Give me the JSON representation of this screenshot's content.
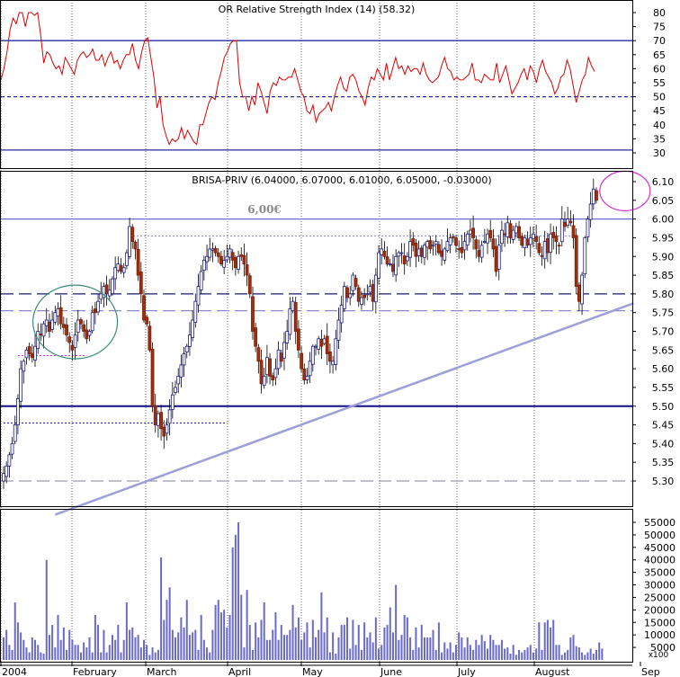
{
  "chart_data": [
    {
      "type": "line",
      "panel": "indicator",
      "title": "OR Relative Strength Index (14) (58.32)",
      "ylim": [
        30,
        85
      ],
      "yticks": [
        30,
        35,
        40,
        45,
        50,
        55,
        60,
        65,
        70,
        75,
        80
      ],
      "reference_lines": [
        {
          "value": 70,
          "style": "solid"
        },
        {
          "value": 50,
          "style": "dashed"
        },
        {
          "value": 31,
          "style": "solid"
        }
      ],
      "series": [
        {
          "color": "#dd0000",
          "values": [
            56,
            60,
            66,
            74,
            78,
            76,
            80,
            80,
            75,
            80,
            80,
            79,
            80,
            72,
            62,
            66,
            65,
            62,
            60,
            61,
            58,
            64,
            62,
            60,
            58,
            63,
            65,
            66,
            64,
            65,
            67,
            63,
            63,
            65,
            61,
            64,
            66,
            62,
            63,
            60,
            63,
            65,
            65,
            69,
            63,
            60,
            66,
            70,
            71,
            64,
            57,
            46,
            50,
            40,
            36,
            33,
            35,
            34,
            35,
            39,
            35,
            38,
            36,
            34,
            33,
            40,
            40,
            44,
            48,
            50,
            49,
            55,
            59,
            64,
            66,
            69,
            70,
            70,
            55,
            50,
            50,
            45,
            50,
            47,
            55,
            52,
            48,
            44,
            52,
            55,
            54,
            57,
            56,
            56,
            57,
            57,
            60,
            56,
            52,
            50,
            45,
            44,
            47,
            41,
            44,
            45,
            46,
            48,
            45,
            50,
            54,
            57,
            53,
            52,
            57,
            58,
            56,
            52,
            50,
            47,
            53,
            57,
            56,
            60,
            58,
            56,
            62,
            56,
            60,
            64,
            60,
            61,
            58,
            61,
            59,
            60,
            60,
            58,
            62,
            58,
            56,
            55,
            56,
            57,
            61,
            64,
            60,
            59,
            56,
            57,
            56,
            56,
            57,
            58,
            62,
            56,
            56,
            55,
            58,
            57,
            56,
            56,
            62,
            55,
            58,
            61,
            56,
            51,
            53,
            55,
            58,
            60,
            56,
            61,
            59,
            55,
            60,
            63,
            59,
            57,
            55,
            51,
            53,
            57,
            58,
            63,
            60,
            54,
            48,
            52,
            56,
            58,
            64,
            61,
            59
          ]
        }
      ]
    },
    {
      "type": "candlestick",
      "panel": "price",
      "title": "BRISA-PRIV (6.04000, 6.07000, 6.01000, 6.05000, -0.03000)",
      "annotation": "6,00€",
      "ylim": [
        5.24,
        6.16
      ],
      "yticks": [
        5.3,
        5.35,
        5.4,
        5.45,
        5.5,
        5.55,
        5.6,
        5.65,
        5.7,
        5.75,
        5.8,
        5.85,
        5.9,
        5.95,
        6.0,
        6.05,
        6.1
      ],
      "x_labels": [
        "2004",
        "February",
        "March",
        "April",
        "May",
        "June",
        "July",
        "August",
        "Sep"
      ],
      "horizontal_lines": [
        {
          "value": 6.0,
          "style": "solid",
          "color": "#6a6acf"
        },
        {
          "value": 5.8,
          "style": "long-dash",
          "color": "#1a1a6e"
        },
        {
          "value": 5.755,
          "style": "long-dash",
          "color": "#8c8ccc"
        },
        {
          "value": 5.5,
          "style": "solid",
          "color": "#10108a"
        },
        {
          "value": 5.3,
          "style": "long-dash",
          "color": "#9a9aaa"
        }
      ],
      "trendline": {
        "from": {
          "bar": 18,
          "price": 5.21
        },
        "to": {
          "bar": 220,
          "price": 5.775
        },
        "color": "#9e9ed8"
      },
      "dotted_segments": [
        {
          "from_bar": 0,
          "to_bar": 78,
          "price": 5.455,
          "color": "#2020c0"
        },
        {
          "from_bar": 5,
          "to_bar": 29,
          "price": 5.635,
          "color": "#e020e0"
        },
        {
          "from_bar": 44,
          "to_bar": 200,
          "price": 5.955,
          "color": "#8080e0"
        }
      ],
      "ellipses": [
        {
          "center_bar": 25,
          "center_price": 5.725,
          "color": "#3a8a78"
        },
        {
          "center_bar": 217,
          "center_price": 6.075,
          "color": "#d030d0"
        }
      ],
      "closes": [
        5.32,
        5.34,
        5.37,
        5.4,
        5.45,
        5.52,
        5.6,
        5.62,
        5.65,
        5.64,
        5.63,
        5.66,
        5.7,
        5.69,
        5.72,
        5.73,
        5.7,
        5.73,
        5.75,
        5.76,
        5.72,
        5.71,
        5.69,
        5.67,
        5.65,
        5.69,
        5.73,
        5.72,
        5.7,
        5.68,
        5.7,
        5.75,
        5.75,
        5.78,
        5.8,
        5.82,
        5.8,
        5.81,
        5.84,
        5.87,
        5.88,
        5.86,
        5.87,
        5.91,
        5.98,
        5.94,
        5.92,
        5.85,
        5.8,
        5.73,
        5.72,
        5.65,
        5.5,
        5.45,
        5.48,
        5.44,
        5.42,
        5.45,
        5.49,
        5.53,
        5.55,
        5.58,
        5.61,
        5.64,
        5.66,
        5.69,
        5.73,
        5.78,
        5.82,
        5.86,
        5.89,
        5.9,
        5.92,
        5.92,
        5.91,
        5.9,
        5.88,
        5.89,
        5.9,
        5.92,
        5.89,
        5.87,
        5.9,
        5.9,
        5.88,
        5.85,
        5.8,
        5.7,
        5.66,
        5.62,
        5.56,
        5.58,
        5.63,
        5.58,
        5.57,
        5.6,
        5.65,
        5.62,
        5.67,
        5.7,
        5.76,
        5.78,
        5.7,
        5.65,
        5.6,
        5.57,
        5.58,
        5.62,
        5.66,
        5.66,
        5.68,
        5.66,
        5.68,
        5.64,
        5.62,
        5.62,
        5.68,
        5.73,
        5.77,
        5.82,
        5.79,
        5.8,
        5.85,
        5.82,
        5.78,
        5.79,
        5.79,
        5.8,
        5.82,
        5.78,
        5.85,
        5.91,
        5.92,
        5.9,
        5.88,
        5.88,
        5.86,
        5.9,
        5.91,
        5.91,
        5.88,
        5.9,
        5.94,
        5.93,
        5.9,
        5.92,
        5.9,
        5.93,
        5.94,
        5.92,
        5.93,
        5.94,
        5.91,
        5.9,
        5.92,
        5.94,
        5.95,
        5.95,
        5.93,
        5.92,
        5.91,
        5.94,
        5.96,
        5.97,
        5.95,
        5.92,
        5.9,
        5.93,
        5.94,
        5.96,
        5.95,
        5.92,
        5.86,
        5.93,
        5.97,
        5.96,
        5.99,
        5.95,
        5.97,
        5.98,
        5.95,
        5.93,
        5.95,
        5.93,
        5.95,
        5.96,
        5.94,
        5.91,
        5.9,
        5.94,
        5.91,
        5.96,
        5.95,
        5.94,
        5.93,
        6.0,
        5.98,
        6.0,
        5.99,
        5.95,
        5.82,
        5.78,
        5.85,
        5.95,
        6.0,
        6.04,
        6.08,
        6.05
      ]
    },
    {
      "type": "bar",
      "panel": "volume",
      "x_labels": [
        "2004",
        "February",
        "March",
        "April",
        "May",
        "June",
        "July",
        "August",
        "Sep"
      ],
      "axis_unit": "x100",
      "ylim": [
        0,
        58000
      ],
      "yticks": [
        5000,
        10000,
        15000,
        20000,
        25000,
        30000,
        35000,
        40000,
        45000,
        50000,
        55000
      ],
      "color": "#6a6ac8",
      "values": [
        9000,
        12000,
        6000,
        4000,
        23000,
        15000,
        11000,
        8000,
        5000,
        3000,
        9000,
        8000,
        6000,
        3000,
        2500,
        40000,
        10000,
        14000,
        5000,
        18000,
        8000,
        13000,
        4000,
        12000,
        8000,
        6000,
        6000,
        3000,
        7000,
        5000,
        9000,
        3000,
        18000,
        14000,
        3000,
        12000,
        3000,
        6000,
        10000,
        8000,
        14000,
        3000,
        8000,
        23000,
        12000,
        13000,
        9000,
        10000,
        5000,
        8000,
        6000,
        2000,
        5000,
        3000,
        4000,
        41000,
        16000,
        24000,
        29000,
        12000,
        9000,
        11000,
        17000,
        13000,
        24000,
        10000,
        11000,
        12000,
        4000,
        18000,
        8000,
        5000,
        3000,
        12000,
        22000,
        24000,
        19000,
        20000,
        13000,
        18000,
        45000,
        50000,
        55000,
        26000,
        5000,
        28000,
        14000,
        4000,
        15000,
        9000,
        16000,
        23000,
        8000,
        8000,
        12000,
        19000,
        8000,
        14000,
        10000,
        10000,
        12000,
        22000,
        13000,
        17000,
        8000,
        11000,
        15000,
        5000,
        16000,
        9000,
        12000,
        27000,
        11000,
        17000,
        3000,
        11000,
        2500,
        9000,
        14000,
        14000,
        17000,
        4500,
        16000,
        6000,
        14000,
        4000,
        15000,
        9000,
        11000,
        7000,
        17000,
        4500,
        6000,
        13000,
        14000,
        21000,
        11000,
        30000,
        8000,
        10000,
        18000,
        17000,
        9000,
        4000,
        13000,
        5000,
        14000,
        9000,
        9000,
        9000,
        12000,
        4000,
        15000,
        3000,
        7000,
        4500,
        7000,
        3000,
        6000,
        11000,
        9000,
        5000,
        9000,
        6000,
        4000,
        8000,
        6000,
        10000,
        7500,
        4500,
        10000,
        8000,
        6000,
        6000,
        8000,
        4500,
        5000,
        2500,
        6000,
        2000,
        4000,
        3000,
        4000,
        5000,
        6000,
        3000,
        4500,
        15000,
        4000,
        15000,
        16000,
        13000,
        16000,
        6000,
        6000,
        2000,
        3000,
        4000,
        9000,
        10000,
        5500,
        5000,
        3000,
        2000,
        3000,
        4500,
        2500,
        4000,
        7000,
        4500
      ]
    }
  ]
}
